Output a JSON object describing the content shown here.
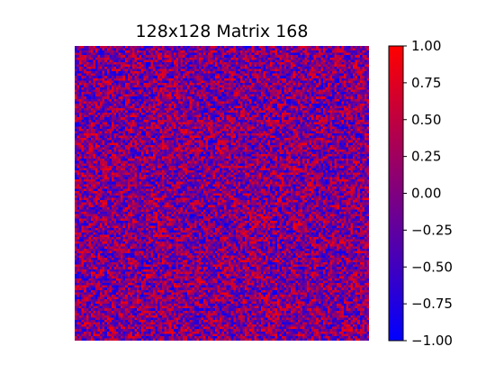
{
  "chart_data": {
    "type": "heatmap",
    "title": "128x128 Matrix 168",
    "rows": 128,
    "cols": 128,
    "value_range": [
      -1.0,
      1.0
    ],
    "colormap": [
      "#0000ff",
      "#ff0000"
    ],
    "colorbar": {
      "ticks": [
        1.0,
        0.75,
        0.5,
        0.25,
        0.0,
        -0.25,
        -0.5,
        -0.75,
        -1.0
      ],
      "tick_labels": [
        "1.00",
        "0.75",
        "0.50",
        "0.25",
        "0.00",
        "−0.25",
        "−0.50",
        "−0.75",
        "−1.00"
      ]
    },
    "values_note": "random noise matrix, values roughly uniform in [-1, 1]",
    "axes_visible": false
  }
}
